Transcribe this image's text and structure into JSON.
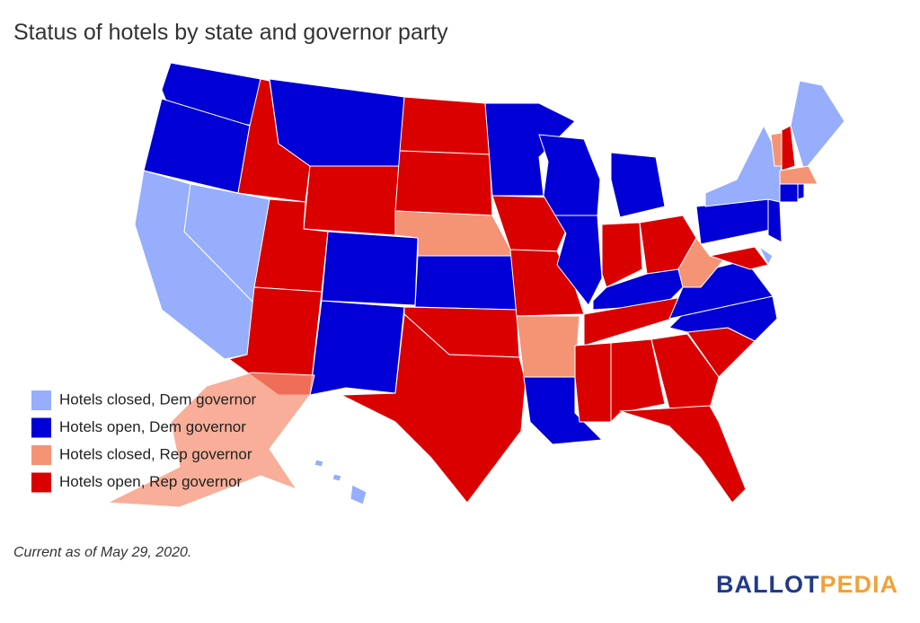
{
  "header": {
    "title": "Status of hotels by state and governor party"
  },
  "legend": [
    {
      "label": "Hotels closed, Dem governor",
      "color": "#96aefc"
    },
    {
      "label": "Hotels open, Dem governor",
      "color": "#0000d6"
    },
    {
      "label": "Hotels closed, Rep governor",
      "color": "#f59375"
    },
    {
      "label": "Hotels open, Rep governor",
      "color": "#db0000"
    }
  ],
  "note": "Current as of May 29, 2020.",
  "logo": {
    "part1": "BALLOT",
    "part2": "PEDIA"
  }
}
